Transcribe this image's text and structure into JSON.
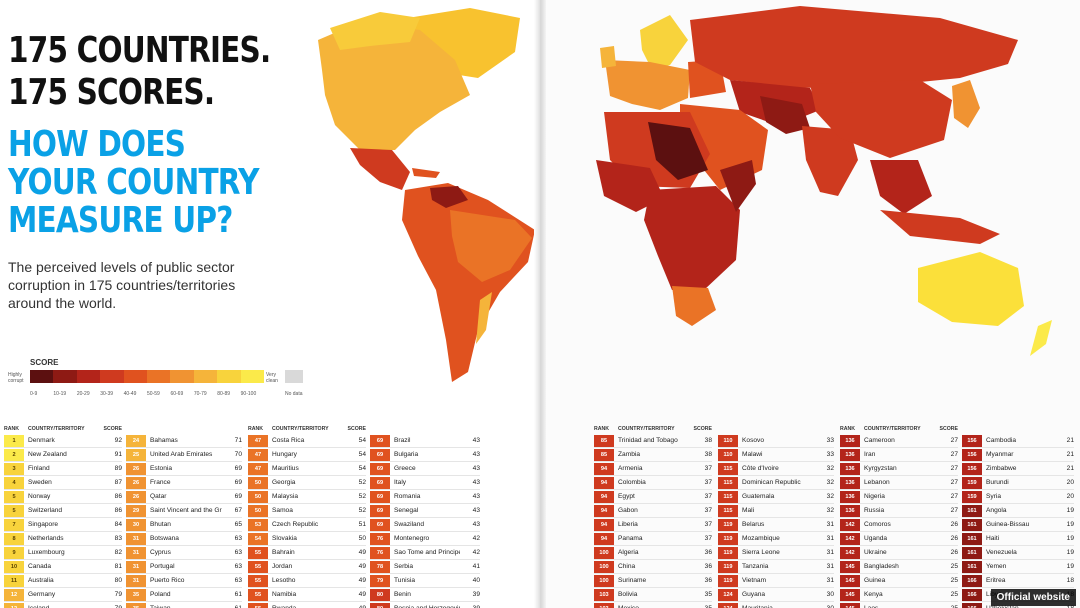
{
  "headline": {
    "line1": "175 COUNTRIES.",
    "line2": "175 SCORES.",
    "question1": "HOW DOES",
    "question2": "YOUR COUNTRY",
    "question3": "MEASURE UP?"
  },
  "description": "The perceived levels of public sector corruption in 175 countries/territories around the world.",
  "legend": {
    "title": "SCORE",
    "left_label": "Highly corrupt",
    "right_label": "Very clean",
    "ranges": [
      "0-9",
      "10-19",
      "20-29",
      "30-39",
      "40-49",
      "50-59",
      "60-69",
      "70-79",
      "80-89",
      "90-100"
    ],
    "colors": [
      "#5c1010",
      "#8e1a14",
      "#b3241a",
      "#cf3a1f",
      "#e0521f",
      "#ea7326",
      "#f09332",
      "#f5b43a",
      "#f8d33c",
      "#fbea4a"
    ],
    "no_data_label": "No data"
  },
  "table_headers": {
    "rank": "RANK",
    "country": "COUNTRY/TERRITORY",
    "score": "SCORE"
  },
  "columns": [
    {
      "rows": [
        {
          "rank": "1",
          "country": "Denmark",
          "score": "92"
        },
        {
          "rank": "2",
          "country": "New Zealand",
          "score": "91"
        },
        {
          "rank": "3",
          "country": "Finland",
          "score": "89"
        },
        {
          "rank": "4",
          "country": "Sweden",
          "score": "87"
        },
        {
          "rank": "5",
          "country": "Norway",
          "score": "86"
        },
        {
          "rank": "5",
          "country": "Switzerland",
          "score": "86"
        },
        {
          "rank": "7",
          "country": "Singapore",
          "score": "84"
        },
        {
          "rank": "8",
          "country": "Netherlands",
          "score": "83"
        },
        {
          "rank": "9",
          "country": "Luxembourg",
          "score": "82"
        },
        {
          "rank": "10",
          "country": "Canada",
          "score": "81"
        },
        {
          "rank": "11",
          "country": "Australia",
          "score": "80"
        },
        {
          "rank": "12",
          "country": "Germany",
          "score": "79"
        },
        {
          "rank": "12",
          "country": "Iceland",
          "score": "79"
        }
      ]
    },
    {
      "rows": [
        {
          "rank": "24",
          "country": "Bahamas",
          "score": "71"
        },
        {
          "rank": "25",
          "country": "United Arab Emirates",
          "score": "70"
        },
        {
          "rank": "26",
          "country": "Estonia",
          "score": "69"
        },
        {
          "rank": "26",
          "country": "France",
          "score": "69"
        },
        {
          "rank": "26",
          "country": "Qatar",
          "score": "69"
        },
        {
          "rank": "29",
          "country": "Saint Vincent and the Grenadines",
          "score": "67"
        },
        {
          "rank": "30",
          "country": "Bhutan",
          "score": "65"
        },
        {
          "rank": "31",
          "country": "Botswana",
          "score": "63"
        },
        {
          "rank": "31",
          "country": "Cyprus",
          "score": "63"
        },
        {
          "rank": "31",
          "country": "Portugal",
          "score": "63"
        },
        {
          "rank": "31",
          "country": "Puerto Rico",
          "score": "63"
        },
        {
          "rank": "35",
          "country": "Poland",
          "score": "61"
        },
        {
          "rank": "35",
          "country": "Taiwan",
          "score": "61"
        }
      ]
    },
    {
      "rows": [
        {
          "rank": "47",
          "country": "Costa Rica",
          "score": "54"
        },
        {
          "rank": "47",
          "country": "Hungary",
          "score": "54"
        },
        {
          "rank": "47",
          "country": "Mauritius",
          "score": "54"
        },
        {
          "rank": "50",
          "country": "Georgia",
          "score": "52"
        },
        {
          "rank": "50",
          "country": "Malaysia",
          "score": "52"
        },
        {
          "rank": "50",
          "country": "Samoa",
          "score": "52"
        },
        {
          "rank": "53",
          "country": "Czech Republic",
          "score": "51"
        },
        {
          "rank": "54",
          "country": "Slovakia",
          "score": "50"
        },
        {
          "rank": "55",
          "country": "Bahrain",
          "score": "49"
        },
        {
          "rank": "55",
          "country": "Jordan",
          "score": "49"
        },
        {
          "rank": "55",
          "country": "Lesotho",
          "score": "49"
        },
        {
          "rank": "55",
          "country": "Namibia",
          "score": "49"
        },
        {
          "rank": "55",
          "country": "Rwanda",
          "score": "49"
        }
      ]
    },
    {
      "rows": [
        {
          "rank": "69",
          "country": "Brazil",
          "score": "43"
        },
        {
          "rank": "69",
          "country": "Bulgaria",
          "score": "43"
        },
        {
          "rank": "69",
          "country": "Greece",
          "score": "43"
        },
        {
          "rank": "69",
          "country": "Italy",
          "score": "43"
        },
        {
          "rank": "69",
          "country": "Romania",
          "score": "43"
        },
        {
          "rank": "69",
          "country": "Senegal",
          "score": "43"
        },
        {
          "rank": "69",
          "country": "Swaziland",
          "score": "43"
        },
        {
          "rank": "76",
          "country": "Montenegro",
          "score": "42"
        },
        {
          "rank": "76",
          "country": "Sao Tome and Principe",
          "score": "42"
        },
        {
          "rank": "78",
          "country": "Serbia",
          "score": "41"
        },
        {
          "rank": "79",
          "country": "Tunisia",
          "score": "40"
        },
        {
          "rank": "80",
          "country": "Benin",
          "score": "39"
        },
        {
          "rank": "80",
          "country": "Bosnia and Herzegovina",
          "score": "39"
        }
      ]
    },
    {
      "rows": [
        {
          "rank": "85",
          "country": "Trinidad and Tobago",
          "score": "38"
        },
        {
          "rank": "85",
          "country": "Zambia",
          "score": "38"
        },
        {
          "rank": "94",
          "country": "Armenia",
          "score": "37"
        },
        {
          "rank": "94",
          "country": "Colombia",
          "score": "37"
        },
        {
          "rank": "94",
          "country": "Egypt",
          "score": "37"
        },
        {
          "rank": "94",
          "country": "Gabon",
          "score": "37"
        },
        {
          "rank": "94",
          "country": "Liberia",
          "score": "37"
        },
        {
          "rank": "94",
          "country": "Panama",
          "score": "37"
        },
        {
          "rank": "100",
          "country": "Algeria",
          "score": "36"
        },
        {
          "rank": "100",
          "country": "China",
          "score": "36"
        },
        {
          "rank": "100",
          "country": "Suriname",
          "score": "36"
        },
        {
          "rank": "103",
          "country": "Bolivia",
          "score": "35"
        },
        {
          "rank": "103",
          "country": "Mexico",
          "score": "35"
        }
      ]
    },
    {
      "rows": [
        {
          "rank": "110",
          "country": "Kosovo",
          "score": "33"
        },
        {
          "rank": "110",
          "country": "Malawi",
          "score": "33"
        },
        {
          "rank": "115",
          "country": "Côte d'Ivoire",
          "score": "32"
        },
        {
          "rank": "115",
          "country": "Dominican Republic",
          "score": "32"
        },
        {
          "rank": "115",
          "country": "Guatemala",
          "score": "32"
        },
        {
          "rank": "115",
          "country": "Mali",
          "score": "32"
        },
        {
          "rank": "119",
          "country": "Belarus",
          "score": "31"
        },
        {
          "rank": "119",
          "country": "Mozambique",
          "score": "31"
        },
        {
          "rank": "119",
          "country": "Sierra Leone",
          "score": "31"
        },
        {
          "rank": "119",
          "country": "Tanzania",
          "score": "31"
        },
        {
          "rank": "119",
          "country": "Vietnam",
          "score": "31"
        },
        {
          "rank": "124",
          "country": "Guyana",
          "score": "30"
        },
        {
          "rank": "124",
          "country": "Mauritania",
          "score": "30"
        }
      ]
    },
    {
      "rows": [
        {
          "rank": "136",
          "country": "Cameroon",
          "score": "27"
        },
        {
          "rank": "136",
          "country": "Iran",
          "score": "27"
        },
        {
          "rank": "136",
          "country": "Kyrgyzstan",
          "score": "27"
        },
        {
          "rank": "136",
          "country": "Lebanon",
          "score": "27"
        },
        {
          "rank": "136",
          "country": "Nigeria",
          "score": "27"
        },
        {
          "rank": "136",
          "country": "Russia",
          "score": "27"
        },
        {
          "rank": "142",
          "country": "Comoros",
          "score": "26"
        },
        {
          "rank": "142",
          "country": "Uganda",
          "score": "26"
        },
        {
          "rank": "142",
          "country": "Ukraine",
          "score": "26"
        },
        {
          "rank": "145",
          "country": "Bangladesh",
          "score": "25"
        },
        {
          "rank": "145",
          "country": "Guinea",
          "score": "25"
        },
        {
          "rank": "145",
          "country": "Kenya",
          "score": "25"
        },
        {
          "rank": "145",
          "country": "Laos",
          "score": "25"
        }
      ]
    },
    {
      "rows": [
        {
          "rank": "156",
          "country": "Cambodia",
          "score": "21"
        },
        {
          "rank": "156",
          "country": "Myanmar",
          "score": "21"
        },
        {
          "rank": "156",
          "country": "Zimbabwe",
          "score": "21"
        },
        {
          "rank": "159",
          "country": "Burundi",
          "score": "20"
        },
        {
          "rank": "159",
          "country": "Syria",
          "score": "20"
        },
        {
          "rank": "161",
          "country": "Angola",
          "score": "19"
        },
        {
          "rank": "161",
          "country": "Guinea-Bissau",
          "score": "19"
        },
        {
          "rank": "161",
          "country": "Haiti",
          "score": "19"
        },
        {
          "rank": "161",
          "country": "Venezuela",
          "score": "19"
        },
        {
          "rank": "161",
          "country": "Yemen",
          "score": "19"
        },
        {
          "rank": "166",
          "country": "Eritrea",
          "score": "18"
        },
        {
          "rank": "166",
          "country": "Libya",
          "score": "18"
        },
        {
          "rank": "166",
          "country": "Uzbekistan",
          "score": "18"
        }
      ]
    }
  ],
  "badge": "Official website"
}
